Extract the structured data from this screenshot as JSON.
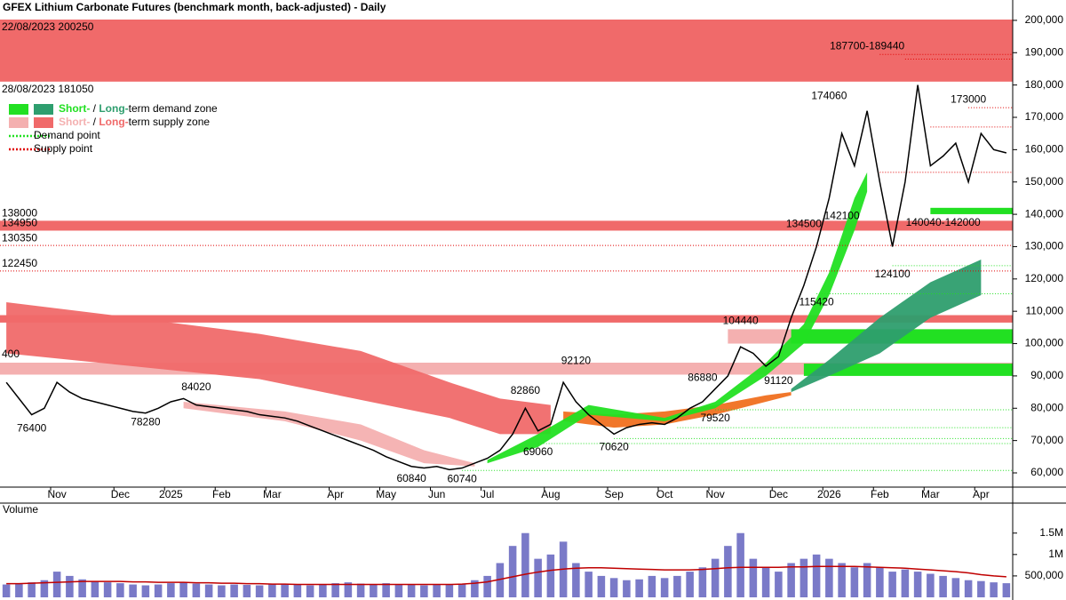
{
  "chart_data": {
    "type": "line",
    "title": "GFEX Lithium Carbonate Futures (benchmark month, back-adjusted) - Daily",
    "categories": [
      null,
      null,
      null,
      null,
      "Nov",
      null,
      null,
      null,
      null,
      "Dec",
      null,
      null,
      null,
      "2025",
      null,
      null,
      null,
      "Feb",
      null,
      null,
      null,
      "Mar",
      null,
      null,
      null,
      null,
      "Apr",
      null,
      null,
      null,
      "May",
      null,
      null,
      null,
      "Jun",
      null,
      null,
      null,
      "Jul",
      null,
      null,
      null,
      null,
      "Aug",
      null,
      null,
      null,
      null,
      "Sep",
      null,
      null,
      null,
      "Oct",
      null,
      null,
      null,
      "Nov",
      null,
      null,
      null,
      null,
      "Dec",
      null,
      null,
      null,
      "2026",
      null,
      null,
      null,
      "Feb",
      null,
      null,
      null,
      "Mar",
      null,
      null,
      null,
      "Apr",
      null,
      null
    ],
    "series": [
      {
        "color": "#000000",
        "values": [
          88000,
          83000,
          78000,
          80000,
          88000,
          85000,
          83000,
          82000,
          81000,
          80000,
          79000,
          78500,
          80000,
          82000,
          83000,
          81000,
          80500,
          80000,
          79500,
          79000,
          78000,
          77500,
          77000,
          76000,
          74500,
          73000,
          71500,
          70000,
          68500,
          67000,
          65000,
          63500,
          62000,
          61500,
          62000,
          61000,
          61500,
          63000,
          64500,
          67000,
          72000,
          80000,
          73000,
          75000,
          88000,
          82000,
          78000,
          75000,
          72000,
          74000,
          75000,
          75500,
          75000,
          77000,
          80000,
          82000,
          86000,
          90000,
          99000,
          97000,
          93000,
          96000,
          108000,
          118000,
          130000,
          145000,
          165000,
          155000,
          172000,
          150000,
          130000,
          150000,
          180000,
          155000,
          158000,
          162000,
          150000,
          165000,
          160000,
          159000
        ]
      }
    ],
    "ylim": [
      55600,
      206300
    ],
    "yticks": [
      {
        "value": 60000,
        "label": "60,000"
      },
      {
        "value": 70000,
        "label": "70,000"
      },
      {
        "value": 80000,
        "label": "80,000"
      },
      {
        "value": 90000,
        "label": "90,000"
      },
      {
        "value": 100000,
        "label": "100,000"
      },
      {
        "value": 110000,
        "label": "110,000"
      },
      {
        "value": 120000,
        "label": "120,000"
      },
      {
        "value": 130000,
        "label": "130,000"
      },
      {
        "value": 140000,
        "label": "140,000"
      },
      {
        "value": 150000,
        "label": "150,000"
      },
      {
        "value": 160000,
        "label": "160,000"
      },
      {
        "value": 170000,
        "label": "170,000"
      },
      {
        "value": 180000,
        "label": "180,000"
      },
      {
        "value": 190000,
        "label": "190,000"
      },
      {
        "value": 200000,
        "label": "200,000"
      }
    ],
    "zones": [
      {
        "color": "#f06a6a",
        "low": 181050,
        "high": 200250,
        "from": 0,
        "labels": [
          "22/08/2023 200250",
          "28/08/2023 181050"
        ]
      },
      {
        "color": "#f06a6a",
        "low": 134950,
        "high": 138000,
        "from": 0
      },
      {
        "color": "#f06a6a",
        "low": 106500,
        "high": 108800,
        "from": 0
      },
      {
        "color": "#f4b0b0",
        "low": 90400,
        "high": 94100,
        "from": 0
      },
      {
        "color": "#f4b0b0",
        "low": 100000,
        "high": 104440,
        "from": 57
      },
      {
        "color": "#22e022",
        "low": 100000,
        "high": 104440,
        "from": 62
      },
      {
        "color": "#22e022",
        "low": 90000,
        "high": 93800,
        "from": 63
      },
      {
        "color": "#22e022",
        "low": 140040,
        "high": 142000,
        "from": 73
      }
    ],
    "bands": [
      {
        "color": "#f06a6a",
        "x": [
          0,
          10,
          20,
          28,
          35,
          39,
          43
        ],
        "upper": [
          112800,
          108000,
          103000,
          97700,
          88000,
          83000,
          81000
        ],
        "lower": [
          97000,
          93000,
          89000,
          82600,
          77000,
          72000,
          72000
        ]
      },
      {
        "color": "#f4b0b0",
        "x": [
          14,
          22,
          28,
          33,
          37
        ],
        "upper": [
          82000,
          79000,
          75000,
          67000,
          63000
        ],
        "lower": [
          80000,
          76000,
          70000,
          63000,
          62000
        ]
      },
      {
        "color": "#f07020",
        "x": [
          44,
          48,
          52,
          56,
          60,
          62
        ],
        "upper": [
          79000,
          78000,
          79000,
          81000,
          84000,
          85000
        ],
        "lower": [
          76000,
          74000,
          75000,
          78000,
          82000,
          84000
        ]
      },
      {
        "color": "#22e022",
        "x": [
          38,
          42,
          46,
          52,
          56,
          60,
          63,
          65,
          67,
          68
        ],
        "upper": [
          64000,
          72000,
          81000,
          77000,
          82000,
          94000,
          106000,
          122000,
          145000,
          153000
        ],
        "lower": [
          63000,
          68000,
          78000,
          76000,
          80000,
          90000,
          100000,
          115000,
          135000,
          147000
        ]
      },
      {
        "color": "#2e9e6e",
        "x": [
          62,
          65,
          69,
          73,
          77
        ],
        "upper": [
          86000,
          95000,
          108000,
          119000,
          126000
        ],
        "lower": [
          85000,
          90000,
          97000,
          108000,
          115000
        ]
      }
    ],
    "supply_color": "#e00000",
    "demand_color": "#22e022",
    "supply_points": [
      {
        "value": 189440,
        "from": 69
      },
      {
        "value": 188000,
        "from": 71
      },
      {
        "value": 173000,
        "from": 76
      },
      {
        "value": 167000,
        "from": 73
      },
      {
        "value": 153000,
        "from": 69
      },
      {
        "value": 130350,
        "from": 0
      },
      {
        "value": 122450,
        "from": 0
      }
    ],
    "demand_points": [
      {
        "value": 124100,
        "from": 70
      },
      {
        "value": 115420,
        "from": 64
      },
      {
        "value": 79520,
        "from": 56
      },
      {
        "value": 74000,
        "from": 53
      },
      {
        "value": 70620,
        "from": 48
      },
      {
        "value": 69060,
        "from": 42
      },
      {
        "value": 60740,
        "from": 36
      }
    ],
    "annotations": [
      {
        "value": 138000,
        "x": 0
      },
      {
        "value": 134950,
        "x": 0
      },
      {
        "value": 130350,
        "x": 0
      },
      {
        "value": 122450,
        "x": 0
      },
      {
        "label": "400",
        "value": 94400,
        "x": 0
      },
      {
        "value": 76400,
        "x": 2
      },
      {
        "value": 78280,
        "x": 11
      },
      {
        "value": 84020,
        "x": 15
      },
      {
        "value": 60840,
        "x": 32
      },
      {
        "value": 60740,
        "x": 36
      },
      {
        "value": 82860,
        "x": 41
      },
      {
        "value": 69060,
        "x": 42
      },
      {
        "value": 92120,
        "x": 45
      },
      {
        "value": 70620,
        "x": 48
      },
      {
        "value": 86880,
        "x": 55
      },
      {
        "value": 79520,
        "x": 56
      },
      {
        "value": 104440,
        "x": 58
      },
      {
        "value": 91120,
        "x": 61
      },
      {
        "value": 134500,
        "x": 63
      },
      {
        "value": 115420,
        "x": 64
      },
      {
        "value": 174060,
        "x": 65
      },
      {
        "value": 142100,
        "x": 66
      },
      {
        "label": "187700-189440",
        "value": 189440,
        "x": 68
      },
      {
        "value": 124100,
        "x": 70
      },
      {
        "value": 173000,
        "x": 76
      },
      {
        "label": "140040-142000",
        "value": 140040,
        "x": 74
      }
    ],
    "legend": [
      {
        "swatches": [
          "#22e022",
          "#2e9e6e"
        ],
        "parts": [
          {
            "text": "Short-",
            "color": "#22e022"
          },
          {
            "text": " / "
          },
          {
            "text": "Long-",
            "color": "#2e9e6e"
          },
          {
            "text": "term demand zone"
          }
        ]
      },
      {
        "swatches": [
          "#f4b0b0",
          "#f06a6a"
        ],
        "parts": [
          {
            "text": "Short-",
            "color": "#f4b0b0"
          },
          {
            "text": " / "
          },
          {
            "text": "Long-",
            "color": "#f06a6a"
          },
          {
            "text": "term supply zone"
          }
        ]
      },
      {
        "line": "#22e022",
        "parts": [
          {
            "text": "Demand point"
          }
        ]
      },
      {
        "line": "#e00000",
        "parts": [
          {
            "text": "Supply point"
          }
        ]
      }
    ],
    "volume": {
      "title": "Volume",
      "color": "#7a7ac8",
      "ma_color": "#c00000",
      "ylim": [
        0,
        2200000
      ],
      "yticks": [
        {
          "value": 500000,
          "label": "500,000"
        },
        {
          "value": 1000000,
          "label": "1M"
        },
        {
          "value": 1500000,
          "label": "1.5M"
        }
      ],
      "values": [
        300000,
        320000,
        350000,
        400000,
        600000,
        500000,
        420000,
        380000,
        350000,
        330000,
        300000,
        280000,
        300000,
        330000,
        350000,
        320000,
        300000,
        280000,
        300000,
        290000,
        280000,
        300000,
        320000,
        300000,
        280000,
        300000,
        330000,
        350000,
        320000,
        300000,
        330000,
        310000,
        300000,
        280000,
        290000,
        300000,
        320000,
        400000,
        500000,
        800000,
        1200000,
        1500000,
        900000,
        1000000,
        1300000,
        800000,
        600000,
        500000,
        450000,
        400000,
        420000,
        500000,
        450000,
        500000,
        600000,
        700000,
        900000,
        1200000,
        1500000,
        900000,
        700000,
        600000,
        800000,
        900000,
        1000000,
        900000,
        800000,
        700000,
        800000,
        700000,
        600000,
        650000,
        600000,
        550000,
        500000,
        450000,
        400000,
        380000,
        350000,
        330000
      ],
      "ma": [
        320000,
        320000,
        330000,
        340000,
        350000,
        360000,
        370000,
        370000,
        370000,
        370000,
        360000,
        360000,
        350000,
        350000,
        350000,
        340000,
        340000,
        330000,
        330000,
        320000,
        320000,
        310000,
        310000,
        300000,
        300000,
        300000,
        300000,
        300000,
        300000,
        300000,
        300000,
        300000,
        300000,
        300000,
        300000,
        300000,
        310000,
        330000,
        360000,
        420000,
        480000,
        540000,
        590000,
        630000,
        660000,
        680000,
        690000,
        690000,
        680000,
        670000,
        660000,
        650000,
        640000,
        640000,
        640000,
        650000,
        670000,
        690000,
        700000,
        700000,
        700000,
        700000,
        710000,
        710000,
        720000,
        720000,
        720000,
        720000,
        710000,
        700000,
        690000,
        680000,
        660000,
        640000,
        620000,
        600000,
        570000,
        530000,
        500000,
        480000
      ]
    }
  }
}
